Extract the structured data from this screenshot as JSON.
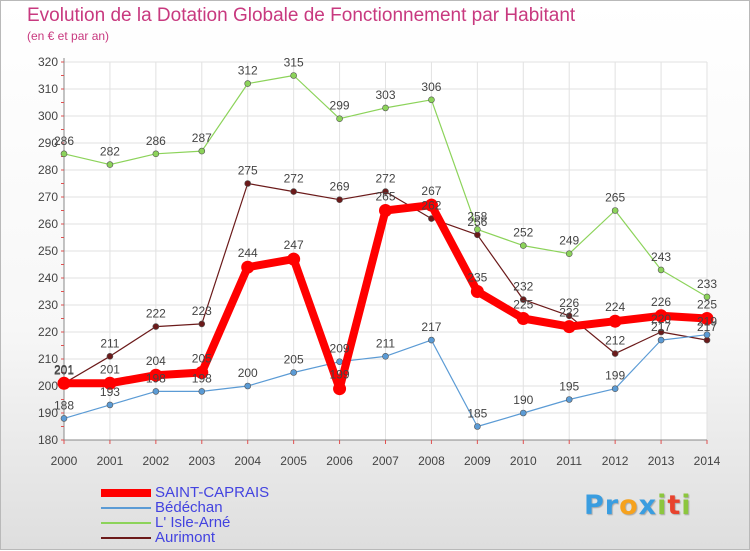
{
  "chart_data": {
    "type": "line",
    "title": "Evolution de la Dotation Globale de Fonctionnement par Habitant",
    "subtitle": "(en € et par an)",
    "x": [
      "2000",
      "2001",
      "2002",
      "2003",
      "2004",
      "2005",
      "2006",
      "2007",
      "2008",
      "2009",
      "2010",
      "2011",
      "2012",
      "2013",
      "2014"
    ],
    "ylim": [
      180,
      320
    ],
    "yticks": [
      180,
      190,
      200,
      210,
      220,
      230,
      240,
      250,
      260,
      270,
      280,
      290,
      300,
      310,
      320
    ],
    "grid": true,
    "legend": "bottom-left",
    "series": [
      {
        "name": "SAINT-CAPRAIS",
        "color": "#ff0000",
        "values": [
          201,
          201,
          204,
          205,
          244,
          247,
          199,
          265,
          267,
          235,
          225,
          222,
          224,
          226,
          225
        ]
      },
      {
        "name": "Bédéchan",
        "color": "#5b9bd5",
        "values": [
          188,
          193,
          198,
          198,
          200,
          205,
          209,
          211,
          217,
          185,
          190,
          195,
          199,
          217,
          219
        ]
      },
      {
        "name": "L' Isle-Arné",
        "color": "#8cd35a",
        "values": [
          286,
          282,
          286,
          287,
          312,
          315,
          299,
          303,
          306,
          258,
          252,
          249,
          265,
          243,
          233
        ]
      },
      {
        "name": "Aurimont",
        "color": "#6b1a1a",
        "values": [
          201,
          211,
          222,
          223,
          275,
          272,
          269,
          272,
          262,
          256,
          232,
          226,
          212,
          220,
          217
        ]
      }
    ]
  },
  "logo": {
    "parts": [
      {
        "text": "Pr",
        "color": "#3a9de0"
      },
      {
        "text": "o",
        "color": "#f6a21e"
      },
      {
        "text": "x",
        "color": "#3a9de0"
      },
      {
        "text": "i",
        "color": "#8cc63e"
      },
      {
        "text": "t",
        "color": "#e8432e"
      },
      {
        "text": "i",
        "color": "#8cc63e"
      }
    ]
  }
}
